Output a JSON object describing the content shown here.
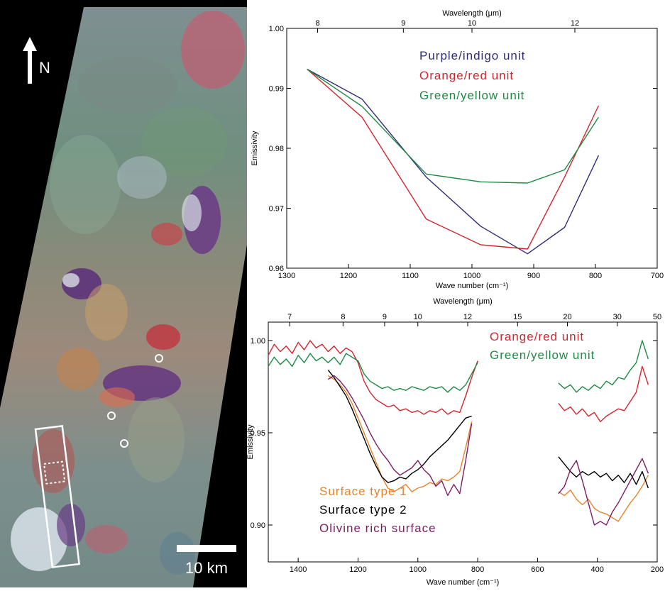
{
  "map": {
    "north_label": "N",
    "scale_label": "10 km",
    "colors": {
      "background": "#000000",
      "overlay": "#ffffff"
    }
  },
  "chart_data": [
    {
      "type": "line",
      "x_axis_title": "Wave number (cm⁻¹)",
      "x2_axis_title": "Wavelength (μm)",
      "y_axis_title": "Emissivity",
      "xlim": [
        1300,
        700
      ],
      "ylim": [
        0.96,
        1.0
      ],
      "x_ticks": [
        1300,
        1200,
        1100,
        1000,
        900,
        800,
        700
      ],
      "x_tick_labels": [
        "1300",
        "1200",
        "1100",
        "1000",
        "900",
        "800",
        "700"
      ],
      "y_ticks": [
        0.96,
        0.97,
        0.98,
        0.99,
        1.0
      ],
      "y_tick_labels": [
        "0.96",
        "0.97",
        "0.98",
        "0.99",
        "1.00"
      ],
      "x2_ticks": [
        8,
        9,
        10,
        12
      ],
      "x2_tick_labels": [
        "8",
        "9",
        "10",
        "12"
      ],
      "legend_position": "top-left",
      "series": [
        {
          "name": "Purple/indigo unit",
          "color": "#2e2d7c",
          "x": [
            1267,
            1178,
            1074,
            986,
            910,
            850,
            795
          ],
          "y": [
            0.9932,
            0.9882,
            0.9752,
            0.967,
            0.9624,
            0.9668,
            0.9788
          ]
        },
        {
          "name": "Orange/red unit",
          "color": "#d4252f",
          "x": [
            1267,
            1178,
            1074,
            986,
            910,
            850,
            795
          ],
          "y": [
            0.9932,
            0.9852,
            0.9682,
            0.9639,
            0.9632,
            0.9752,
            0.9871
          ]
        },
        {
          "name": "Green/yellow unit",
          "color": "#1f8a44",
          "x": [
            1267,
            1178,
            1074,
            986,
            910,
            850,
            795
          ],
          "y": [
            0.9932,
            0.987,
            0.9757,
            0.9744,
            0.9742,
            0.9764,
            0.9852
          ]
        }
      ]
    },
    {
      "type": "line",
      "x_axis_title": "Wave number (cm⁻¹)",
      "x2_axis_title": "Wavelength (μm)",
      "y_axis_title": "Emissivity",
      "xlim": [
        1500,
        200
      ],
      "ylim": [
        0.88,
        1.01
      ],
      "x_ticks": [
        1400,
        1200,
        1000,
        800,
        600,
        400,
        200
      ],
      "x_tick_labels": [
        "1400",
        "1200",
        "1000",
        "800",
        "600",
        "400",
        "200"
      ],
      "y_ticks": [
        0.9,
        0.95,
        1.0
      ],
      "y_tick_labels": [
        "0.90",
        "0.95",
        "1.00"
      ],
      "x2_ticks": [
        7,
        8,
        9,
        10,
        12,
        15,
        20,
        30,
        50
      ],
      "x2_tick_labels": [
        "7",
        "8",
        "9",
        "10",
        "12",
        "15",
        "20",
        "30",
        "50"
      ],
      "legend_position": "top-right",
      "bottom_legend_position": "bottom-left",
      "series": [
        {
          "name": "Orange/red unit",
          "color": "#d4252f",
          "segments": [
            {
              "x": [
                1500,
                1480,
                1460,
                1440,
                1420,
                1400,
                1380,
                1360,
                1340,
                1320,
                1300,
                1280,
                1260,
                1240,
                1220,
                1200,
                1180,
                1160,
                1140,
                1120,
                1100,
                1080,
                1060,
                1040,
                1020,
                1000,
                980,
                960,
                940,
                920,
                900,
                880,
                860,
                840,
                820,
                800
              ],
              "y": [
                0.992,
                0.998,
                0.994,
                0.997,
                0.993,
                0.999,
                0.995,
                1.0,
                0.996,
                0.998,
                0.994,
                0.997,
                0.993,
                0.996,
                0.994,
                0.988,
                0.978,
                0.972,
                0.968,
                0.966,
                0.964,
                0.965,
                0.962,
                0.963,
                0.961,
                0.962,
                0.96,
                0.962,
                0.961,
                0.963,
                0.96,
                0.962,
                0.961,
                0.97,
                0.98,
                0.989
              ]
            },
            {
              "x": [
                530,
                510,
                490,
                470,
                450,
                430,
                410,
                390,
                370,
                350,
                330,
                310,
                290,
                270,
                250,
                230
              ],
              "y": [
                0.966,
                0.962,
                0.964,
                0.96,
                0.963,
                0.959,
                0.961,
                0.956,
                0.959,
                0.961,
                0.963,
                0.962,
                0.967,
                0.972,
                0.986,
                0.976
              ]
            }
          ]
        },
        {
          "name": "Green/yellow unit",
          "color": "#1f8a44",
          "segments": [
            {
              "x": [
                1500,
                1480,
                1460,
                1440,
                1420,
                1400,
                1380,
                1360,
                1340,
                1320,
                1300,
                1280,
                1260,
                1240,
                1220,
                1200,
                1180,
                1160,
                1140,
                1120,
                1100,
                1080,
                1060,
                1040,
                1020,
                1000,
                980,
                960,
                940,
                920,
                900,
                880,
                860,
                840,
                820,
                800
              ],
              "y": [
                0.986,
                0.991,
                0.987,
                0.99,
                0.986,
                0.992,
                0.988,
                0.993,
                0.989,
                0.991,
                0.988,
                0.991,
                0.987,
                0.993,
                0.991,
                0.989,
                0.982,
                0.978,
                0.976,
                0.974,
                0.975,
                0.973,
                0.974,
                0.973,
                0.975,
                0.974,
                0.973,
                0.975,
                0.974,
                0.975,
                0.972,
                0.975,
                0.973,
                0.976,
                0.982,
                0.988
              ]
            },
            {
              "x": [
                530,
                510,
                490,
                470,
                450,
                430,
                410,
                390,
                370,
                350,
                330,
                310,
                290,
                270,
                250,
                230
              ],
              "y": [
                0.977,
                0.974,
                0.976,
                0.972,
                0.975,
                0.973,
                0.976,
                0.974,
                0.978,
                0.976,
                0.98,
                0.979,
                0.984,
                0.988,
                1.0,
                0.99
              ]
            }
          ]
        },
        {
          "name": "Surface type 1",
          "color": "#e8832a",
          "segments": [
            {
              "x": [
                1300,
                1280,
                1260,
                1240,
                1220,
                1200,
                1180,
                1160,
                1140,
                1120,
                1100,
                1080,
                1060,
                1040,
                1020,
                1000,
                980,
                960,
                940,
                920,
                900,
                880,
                860,
                840,
                820
              ],
              "y": [
                0.981,
                0.979,
                0.976,
                0.972,
                0.966,
                0.958,
                0.95,
                0.942,
                0.934,
                0.926,
                0.92,
                0.918,
                0.92,
                0.922,
                0.918,
                0.92,
                0.921,
                0.923,
                0.922,
                0.925,
                0.924,
                0.926,
                0.929,
                0.942,
                0.956
              ]
            },
            {
              "x": [
                530,
                510,
                490,
                470,
                450,
                430,
                410,
                390,
                370,
                350,
                330,
                310,
                290,
                270,
                250,
                230
              ],
              "y": [
                0.918,
                0.916,
                0.919,
                0.914,
                0.911,
                0.914,
                0.909,
                0.907,
                0.906,
                0.904,
                0.902,
                0.907,
                0.912,
                0.916,
                0.921,
                0.927
              ]
            }
          ]
        },
        {
          "name": "Surface type 2",
          "color": "#000000",
          "segments": [
            {
              "x": [
                1300,
                1280,
                1260,
                1240,
                1220,
                1200,
                1180,
                1160,
                1140,
                1120,
                1100,
                1080,
                1060,
                1040,
                1020,
                1000,
                980,
                960,
                940,
                920,
                900,
                880,
                860,
                840,
                820
              ],
              "y": [
                0.984,
                0.98,
                0.975,
                0.97,
                0.963,
                0.955,
                0.947,
                0.939,
                0.932,
                0.926,
                0.923,
                0.924,
                0.926,
                0.925,
                0.928,
                0.93,
                0.933,
                0.937,
                0.94,
                0.943,
                0.946,
                0.95,
                0.954,
                0.958,
                0.959
              ]
            },
            {
              "x": [
                530,
                510,
                490,
                470,
                450,
                430,
                410,
                390,
                370,
                350,
                330,
                310,
                290,
                270,
                250,
                230
              ],
              "y": [
                0.937,
                0.933,
                0.929,
                0.926,
                0.929,
                0.927,
                0.929,
                0.926,
                0.928,
                0.924,
                0.927,
                0.923,
                0.928,
                0.922,
                0.929,
                0.92
              ]
            }
          ]
        },
        {
          "name": "Olivine rich surface",
          "color": "#7b1f66",
          "segments": [
            {
              "x": [
                1300,
                1280,
                1260,
                1240,
                1220,
                1200,
                1180,
                1160,
                1140,
                1120,
                1100,
                1080,
                1060,
                1040,
                1020,
                1000,
                980,
                960,
                940,
                920,
                900,
                880,
                860,
                840,
                820
              ],
              "y": [
                0.979,
                0.981,
                0.978,
                0.974,
                0.969,
                0.963,
                0.957,
                0.95,
                0.944,
                0.939,
                0.935,
                0.93,
                0.927,
                0.929,
                0.931,
                0.935,
                0.93,
                0.927,
                0.921,
                0.924,
                0.916,
                0.922,
                0.917,
                0.935,
                0.955
              ]
            },
            {
              "x": [
                530,
                510,
                490,
                470,
                450,
                430,
                410,
                390,
                370,
                350,
                330,
                310,
                290,
                270,
                250,
                230
              ],
              "y": [
                0.917,
                0.921,
                0.93,
                0.935,
                0.924,
                0.912,
                0.9,
                0.902,
                0.9,
                0.907,
                0.912,
                0.918,
                0.924,
                0.93,
                0.936,
                0.928
              ]
            }
          ]
        }
      ]
    }
  ]
}
